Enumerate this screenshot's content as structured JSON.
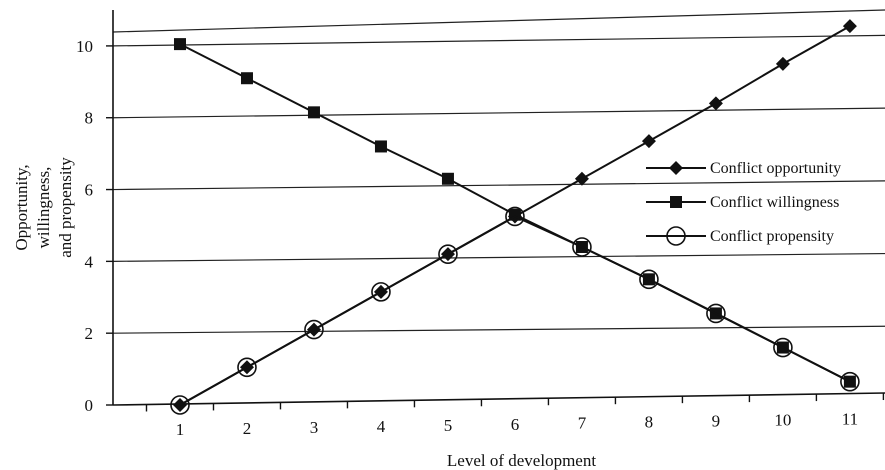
{
  "chart_data": {
    "type": "line",
    "title": "",
    "xlabel": "Level of development",
    "ylabel": "Opportunity, willingness, and propensity",
    "x": [
      1,
      2,
      3,
      4,
      5,
      6,
      7,
      8,
      9,
      10,
      11
    ],
    "xlim": [
      0,
      11.3
    ],
    "ylim": [
      0,
      11
    ],
    "x_ticks": [
      "1",
      "2",
      "3",
      "4",
      "5",
      "6",
      "7",
      "8",
      "9",
      "10",
      "11"
    ],
    "y_ticks": [
      "0",
      "2",
      "4",
      "6",
      "8",
      "10"
    ],
    "grid": true,
    "legend_position": "right",
    "series": [
      {
        "name": "Conflict opportunity",
        "marker": "diamond",
        "values": [
          0,
          1.05,
          2.1,
          3.15,
          4.2,
          5.25,
          6.3,
          7.35,
          8.4,
          9.5,
          10.55
        ]
      },
      {
        "name": "Conflict willingness",
        "marker": "square",
        "values": [
          10.05,
          9.1,
          8.15,
          7.2,
          6.3,
          5.3,
          4.4,
          3.5,
          2.55,
          1.6,
          0.65
        ]
      },
      {
        "name": "Conflict propensity",
        "marker": "circle",
        "values": [
          0,
          1.05,
          2.1,
          3.15,
          4.2,
          5.25,
          4.4,
          3.5,
          2.55,
          1.6,
          0.65
        ]
      }
    ]
  }
}
